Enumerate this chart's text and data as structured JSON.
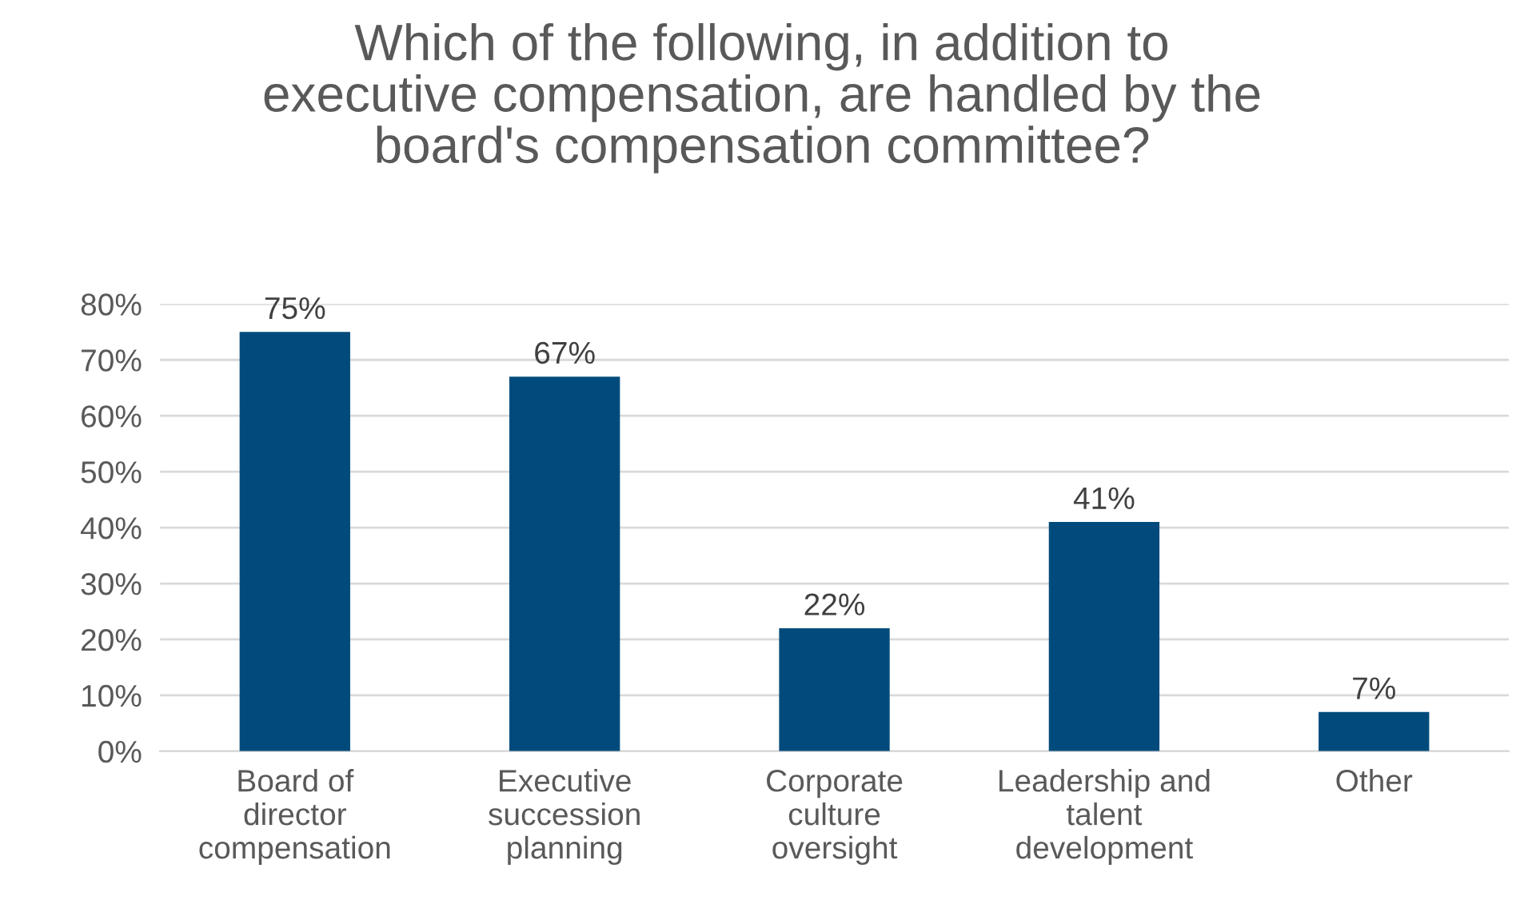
{
  "chart_data": {
    "type": "bar",
    "title": "Which of the following, in addition to\nexecutive compensation, are handled by the\nboard's compensation committee?",
    "categories": [
      "Board of\ndirector\ncompensation",
      "Executive\nsuccession\nplanning",
      "Corporate\nculture\noversight",
      "Leadership and\ntalent\ndevelopment",
      "Other"
    ],
    "values": [
      75,
      67,
      22,
      41,
      7
    ],
    "value_labels": [
      "75%",
      "67%",
      "22%",
      "41%",
      "7%"
    ],
    "color": "#004b7c",
    "ylim": [
      0,
      80
    ],
    "yticks": [
      {
        "value": 0,
        "label": "0%"
      },
      {
        "value": 10,
        "label": "10%"
      },
      {
        "value": 20,
        "label": "20%"
      },
      {
        "value": 30,
        "label": "30%"
      },
      {
        "value": 40,
        "label": "40%"
      },
      {
        "value": 50,
        "label": "50%"
      },
      {
        "value": 60,
        "label": "60%"
      },
      {
        "value": 70,
        "label": "70%"
      },
      {
        "value": 80,
        "label": "80%"
      }
    ],
    "grid": "y"
  }
}
